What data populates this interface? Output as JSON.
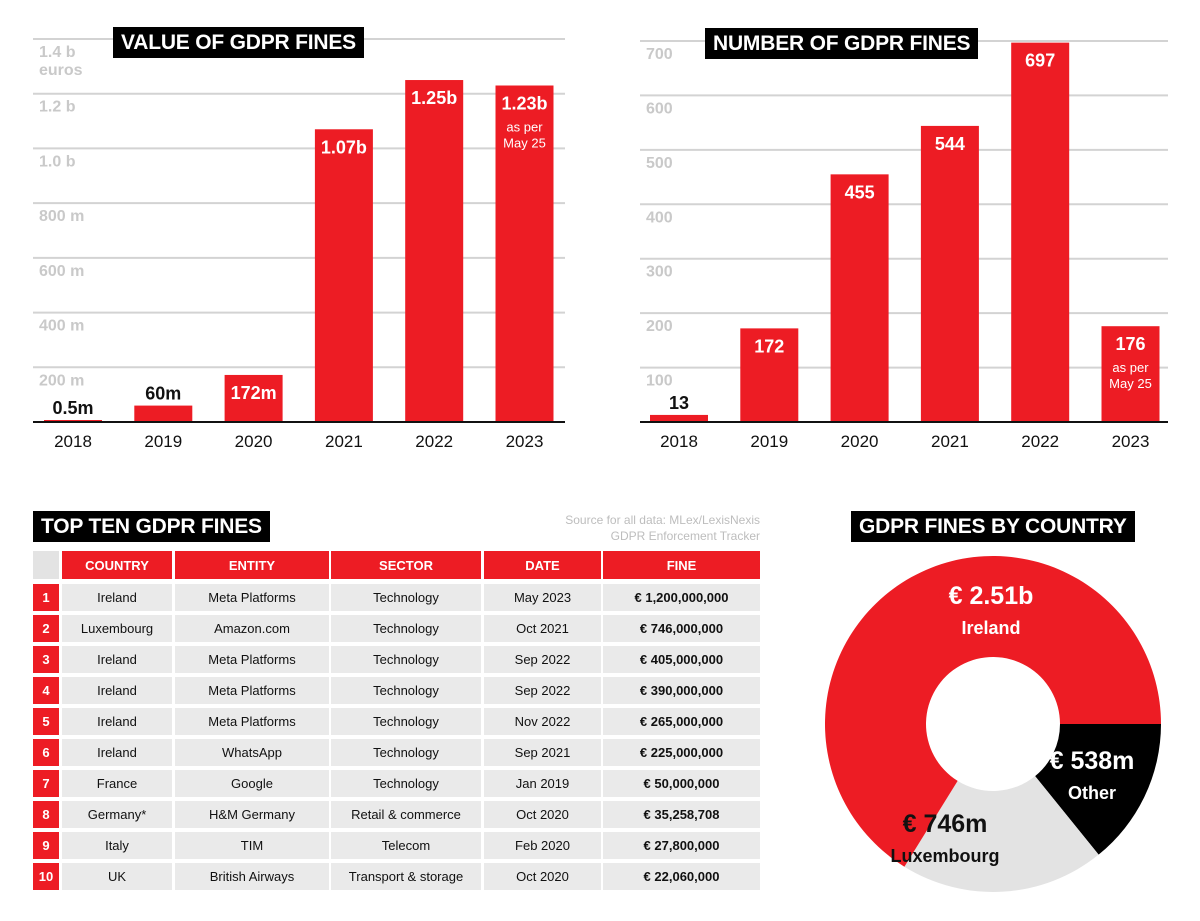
{
  "colors": {
    "accent_red": "#ED1C24",
    "black": "#000000",
    "light_grey": "#E3E3E3",
    "row_grey": "#EAEAEA",
    "gridline": "#D3D3D3",
    "tick_label": "#C9C9C9"
  },
  "chart_data": [
    {
      "id": "value",
      "type": "bar",
      "title": "VALUE OF GDPR FINES",
      "xlabel": "",
      "ylabel": "euros",
      "categories": [
        "2018",
        "2019",
        "2020",
        "2021",
        "2022",
        "2023"
      ],
      "values": [
        0.5,
        60,
        172,
        1070,
        1250,
        1230
      ],
      "unit": "million euros",
      "data_labels": [
        "0.5m",
        "60m",
        "172m",
        "1.07b",
        "1.25b",
        "1.23b"
      ],
      "annotations": [
        {
          "category": "2023",
          "text_line1": "as per",
          "text_line2": "May 25"
        }
      ],
      "yticks": [
        0,
        200,
        400,
        600,
        800,
        1000,
        1200,
        1400
      ],
      "ytick_labels": [
        "",
        "200 m",
        "400 m",
        "600 m",
        "800 m",
        "1.0 b",
        "1.2 b",
        "1.4 b"
      ],
      "ytick_unit_label": "euros",
      "ylim": [
        0,
        1400
      ],
      "grid": true
    },
    {
      "id": "count",
      "type": "bar",
      "title": "NUMBER OF GDPR FINES",
      "xlabel": "",
      "ylabel": "",
      "categories": [
        "2018",
        "2019",
        "2020",
        "2021",
        "2022",
        "2023"
      ],
      "values": [
        13,
        172,
        455,
        544,
        697,
        176
      ],
      "data_labels": [
        "13",
        "172",
        "455",
        "544",
        "697",
        "176"
      ],
      "annotations": [
        {
          "category": "2023",
          "text_line1": "as per",
          "text_line2": "May 25"
        }
      ],
      "yticks": [
        0,
        100,
        200,
        300,
        400,
        500,
        600,
        700
      ],
      "ytick_labels": [
        "",
        "100",
        "200",
        "300",
        "400",
        "500",
        "600",
        "700"
      ],
      "ylim": [
        0,
        700
      ],
      "grid": true
    },
    {
      "id": "country",
      "type": "pie",
      "title": "GDPR FINES BY COUNTRY",
      "donut": true,
      "slices": [
        {
          "label": "Other",
          "value": 538,
          "value_label": "€ 538m",
          "color": "#000000",
          "text_color": "#ffffff"
        },
        {
          "label": "Luxembourg",
          "value": 746,
          "value_label": "€ 746m",
          "color": "#E3E3E3",
          "text_color": "#111111"
        },
        {
          "label": "Ireland",
          "value": 2510,
          "value_label": "€ 2.51b",
          "color": "#ED1C24",
          "text_color": "#ffffff"
        }
      ],
      "start": "3 o'clock",
      "direction": "clockwise"
    }
  ],
  "table": {
    "title": "TOP TEN GDPR FINES",
    "source_line1": "Source for all data: MLex/LexisNexis",
    "source_line2": "GDPR Enforcement Tracker",
    "columns": [
      "COUNTRY",
      "ENTITY",
      "SECTOR",
      "DATE",
      "FINE"
    ],
    "rows": [
      {
        "rank": "1",
        "country": "Ireland",
        "entity": "Meta Platforms",
        "sector": "Technology",
        "date": "May 2023",
        "fine": "€ 1,200,000,000"
      },
      {
        "rank": "2",
        "country": "Luxembourg",
        "entity": "Amazon.com",
        "sector": "Technology",
        "date": "Oct 2021",
        "fine": "€ 746,000,000"
      },
      {
        "rank": "3",
        "country": "Ireland",
        "entity": "Meta Platforms",
        "sector": "Technology",
        "date": "Sep 2022",
        "fine": "€ 405,000,000"
      },
      {
        "rank": "4",
        "country": "Ireland",
        "entity": "Meta Platforms",
        "sector": "Technology",
        "date": "Sep 2022",
        "fine": "€ 390,000,000"
      },
      {
        "rank": "5",
        "country": "Ireland",
        "entity": "Meta Platforms",
        "sector": "Technology",
        "date": "Nov 2022",
        "fine": "€ 265,000,000"
      },
      {
        "rank": "6",
        "country": "Ireland",
        "entity": "WhatsApp",
        "sector": "Technology",
        "date": "Sep 2021",
        "fine": "€ 225,000,000"
      },
      {
        "rank": "7",
        "country": "France",
        "entity": "Google",
        "sector": "Technology",
        "date": "Jan 2019",
        "fine": "€ 50,000,000"
      },
      {
        "rank": "8",
        "country": "Germany*",
        "entity": "H&M Germany",
        "sector": "Retail & commerce",
        "date": "Oct 2020",
        "fine": "€ 35,258,708"
      },
      {
        "rank": "9",
        "country": "Italy",
        "entity": "TIM",
        "sector": "Telecom",
        "date": "Feb 2020",
        "fine": "€ 27,800,000"
      },
      {
        "rank": "10",
        "country": "UK",
        "entity": "British Airways",
        "sector": "Transport & storage",
        "date": "Oct 2020",
        "fine": "€ 22,060,000"
      }
    ]
  }
}
